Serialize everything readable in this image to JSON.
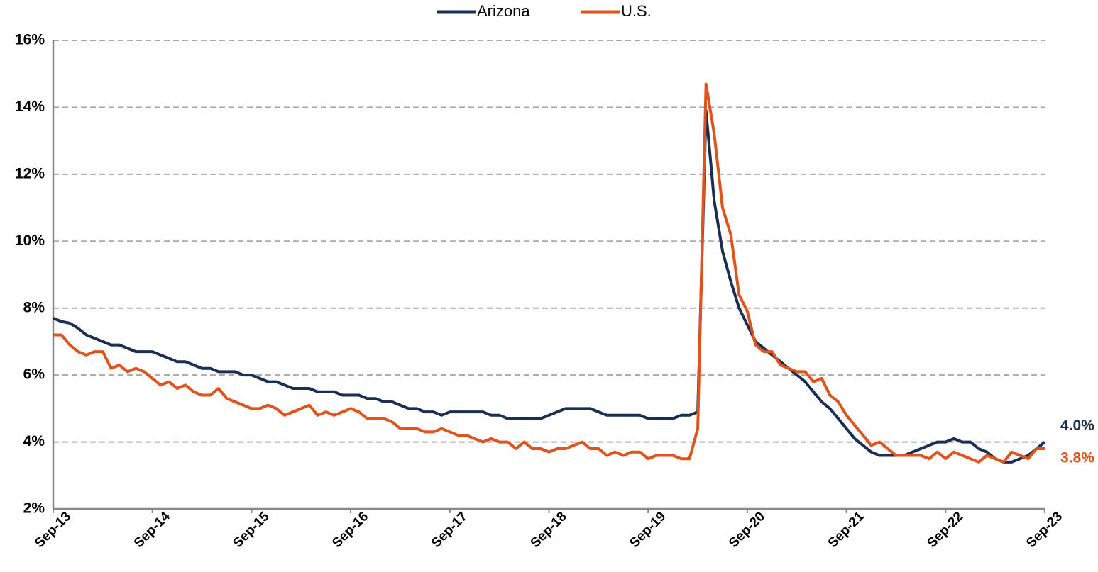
{
  "chart_data": {
    "type": "line",
    "categories": [
      "Sep-13",
      null,
      null,
      null,
      null,
      null,
      null,
      null,
      null,
      null,
      null,
      null,
      "Sep-14",
      null,
      null,
      null,
      null,
      null,
      null,
      null,
      null,
      null,
      null,
      null,
      "Sep-15",
      null,
      null,
      null,
      null,
      null,
      null,
      null,
      null,
      null,
      null,
      null,
      "Sep-16",
      null,
      null,
      null,
      null,
      null,
      null,
      null,
      null,
      null,
      null,
      null,
      "Sep-17",
      null,
      null,
      null,
      null,
      null,
      null,
      null,
      null,
      null,
      null,
      null,
      "Sep-18",
      null,
      null,
      null,
      null,
      null,
      null,
      null,
      null,
      null,
      null,
      null,
      "Sep-19",
      null,
      null,
      null,
      null,
      null,
      null,
      null,
      null,
      null,
      null,
      null,
      "Sep-20",
      null,
      null,
      null,
      null,
      null,
      null,
      null,
      null,
      null,
      null,
      null,
      "Sep-21",
      null,
      null,
      null,
      null,
      null,
      null,
      null,
      null,
      null,
      null,
      null,
      "Sep-22",
      null,
      null,
      null,
      null,
      null,
      null,
      null,
      null,
      null,
      null,
      null,
      "Sep-23"
    ],
    "series": [
      {
        "name": "Arizona",
        "color": "#1b2f52",
        "values": [
          7.7,
          7.6,
          7.55,
          7.4,
          7.2,
          7.1,
          7.0,
          6.9,
          6.9,
          6.8,
          6.7,
          6.7,
          6.7,
          6.6,
          6.5,
          6.4,
          6.4,
          6.3,
          6.2,
          6.2,
          6.1,
          6.1,
          6.1,
          6.0,
          6.0,
          5.9,
          5.8,
          5.8,
          5.7,
          5.6,
          5.6,
          5.6,
          5.5,
          5.5,
          5.5,
          5.4,
          5.4,
          5.4,
          5.3,
          5.3,
          5.2,
          5.2,
          5.1,
          5.0,
          5.0,
          4.9,
          4.9,
          4.8,
          4.9,
          4.9,
          4.9,
          4.9,
          4.9,
          4.8,
          4.8,
          4.7,
          4.7,
          4.7,
          4.7,
          4.7,
          4.8,
          4.9,
          5.0,
          5.0,
          5.0,
          5.0,
          4.9,
          4.8,
          4.8,
          4.8,
          4.8,
          4.8,
          4.7,
          4.7,
          4.7,
          4.7,
          4.8,
          4.8,
          4.9,
          13.9,
          11.2,
          9.7,
          8.8,
          8.0,
          7.5,
          7.0,
          6.8,
          6.6,
          6.4,
          6.2,
          6.0,
          5.8,
          5.5,
          5.2,
          5.0,
          4.7,
          4.4,
          4.1,
          3.9,
          3.7,
          3.6,
          3.6,
          3.6,
          3.6,
          3.7,
          3.8,
          3.9,
          4.0,
          4.0,
          4.1,
          4.0,
          4.0,
          3.8,
          3.7,
          3.5,
          3.4,
          3.4,
          3.5,
          3.6,
          3.8,
          4.0
        ],
        "value_labels": [
          null,
          null,
          null,
          null,
          null,
          null,
          null,
          null,
          null,
          null,
          null,
          null,
          null,
          null,
          null,
          null,
          null,
          null,
          null,
          null,
          null,
          null,
          null,
          null,
          null,
          null,
          null,
          null,
          null,
          null,
          null,
          null,
          null,
          null,
          null,
          null,
          null,
          null,
          null,
          null,
          null,
          null,
          null,
          null,
          null,
          null,
          null,
          null,
          null,
          null,
          null,
          null,
          null,
          null,
          null,
          null,
          null,
          null,
          null,
          null,
          null,
          null,
          null,
          null,
          null,
          null,
          null,
          null,
          null,
          null,
          null,
          null,
          null,
          null,
          null,
          null,
          null,
          null,
          null,
          null,
          null,
          null,
          null,
          null,
          null,
          null,
          null,
          null,
          null,
          null,
          null,
          null,
          null,
          null,
          null,
          null,
          null,
          null,
          null,
          null,
          null,
          null,
          null,
          null,
          null,
          null,
          null,
          null,
          null,
          null,
          null,
          null,
          null,
          null,
          null,
          null,
          null,
          null,
          null,
          null,
          "4.0%"
        ]
      },
      {
        "name": "U.S.",
        "color": "#e1531c",
        "values": [
          7.2,
          7.2,
          6.9,
          6.7,
          6.6,
          6.7,
          6.7,
          6.2,
          6.3,
          6.1,
          6.2,
          6.1,
          5.9,
          5.7,
          5.8,
          5.6,
          5.7,
          5.5,
          5.4,
          5.4,
          5.6,
          5.3,
          5.2,
          5.1,
          5.0,
          5.0,
          5.1,
          5.0,
          4.8,
          4.9,
          5.0,
          5.1,
          4.8,
          4.9,
          4.8,
          4.9,
          5.0,
          4.9,
          4.7,
          4.7,
          4.7,
          4.6,
          4.4,
          4.4,
          4.4,
          4.3,
          4.3,
          4.4,
          4.3,
          4.2,
          4.2,
          4.1,
          4.0,
          4.1,
          4.0,
          4.0,
          3.8,
          4.0,
          3.8,
          3.8,
          3.7,
          3.8,
          3.8,
          3.9,
          4.0,
          3.8,
          3.8,
          3.6,
          3.7,
          3.6,
          3.7,
          3.7,
          3.5,
          3.6,
          3.6,
          3.6,
          3.5,
          3.5,
          4.4,
          14.7,
          13.2,
          11.0,
          10.2,
          8.4,
          7.9,
          6.9,
          6.7,
          6.7,
          6.3,
          6.2,
          6.1,
          6.1,
          5.8,
          5.9,
          5.4,
          5.2,
          4.8,
          4.5,
          4.2,
          3.9,
          4.0,
          3.8,
          3.6,
          3.6,
          3.6,
          3.6,
          3.5,
          3.7,
          3.5,
          3.7,
          3.6,
          3.5,
          3.4,
          3.6,
          3.5,
          3.4,
          3.7,
          3.6,
          3.5,
          3.8,
          3.8
        ],
        "value_labels": [
          null,
          null,
          null,
          null,
          null,
          null,
          null,
          null,
          null,
          null,
          null,
          null,
          null,
          null,
          null,
          null,
          null,
          null,
          null,
          null,
          null,
          null,
          null,
          null,
          null,
          null,
          null,
          null,
          null,
          null,
          null,
          null,
          null,
          null,
          null,
          null,
          null,
          null,
          null,
          null,
          null,
          null,
          null,
          null,
          null,
          null,
          null,
          null,
          null,
          null,
          null,
          null,
          null,
          null,
          null,
          null,
          null,
          null,
          null,
          null,
          null,
          null,
          null,
          null,
          null,
          null,
          null,
          null,
          null,
          null,
          null,
          null,
          null,
          null,
          null,
          null,
          null,
          null,
          null,
          null,
          null,
          null,
          null,
          null,
          null,
          null,
          null,
          null,
          null,
          null,
          null,
          null,
          null,
          null,
          null,
          null,
          null,
          null,
          null,
          null,
          null,
          null,
          null,
          null,
          null,
          null,
          null,
          null,
          null,
          null,
          null,
          null,
          null,
          null,
          null,
          null,
          null,
          null,
          null,
          null,
          "3.8%"
        ]
      }
    ],
    "ylim": [
      2,
      16
    ],
    "yticks": [
      {
        "value": 2,
        "label": "2%"
      },
      {
        "value": 4,
        "label": "4%"
      },
      {
        "value": 6,
        "label": "6%"
      },
      {
        "value": 8,
        "label": "8%"
      },
      {
        "value": 10,
        "label": "10%"
      },
      {
        "value": 12,
        "label": "12%"
      },
      {
        "value": 14,
        "label": "14%"
      },
      {
        "value": 16,
        "label": "16%"
      }
    ],
    "grid": true,
    "legend": "top"
  }
}
